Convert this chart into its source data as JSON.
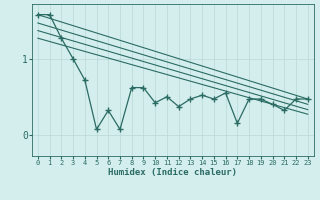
{
  "title": "",
  "xlabel": "Humidex (Indice chaleur)",
  "bg_color": "#d4eeed",
  "line_color": "#2a6b63",
  "grid_color": "#b8d8d5",
  "x_ticks": [
    0,
    1,
    2,
    3,
    4,
    5,
    6,
    7,
    8,
    9,
    10,
    11,
    12,
    13,
    14,
    15,
    16,
    17,
    18,
    19,
    20,
    21,
    22,
    23
  ],
  "y_ticks": [
    0,
    1
  ],
  "ylim": [
    -0.28,
    1.72
  ],
  "xlim": [
    -0.5,
    23.5
  ],
  "data_x": [
    0,
    1,
    2,
    3,
    4,
    5,
    6,
    7,
    8,
    9,
    10,
    11,
    12,
    13,
    14,
    15,
    16,
    17,
    18,
    19,
    20,
    21,
    22,
    23
  ],
  "data_y": [
    1.58,
    1.58,
    1.27,
    1.0,
    0.72,
    0.07,
    0.32,
    0.07,
    0.62,
    0.62,
    0.42,
    0.5,
    0.37,
    0.47,
    0.52,
    0.47,
    0.55,
    0.15,
    0.47,
    0.47,
    0.4,
    0.32,
    0.47,
    0.47
  ],
  "reg1_y0": 1.58,
  "reg1_y1": 0.47,
  "reg2_y0": 1.47,
  "reg2_y1": 0.4,
  "reg3_y0": 1.37,
  "reg3_y1": 0.33,
  "reg4_y0": 1.27,
  "reg4_y1": 0.27
}
